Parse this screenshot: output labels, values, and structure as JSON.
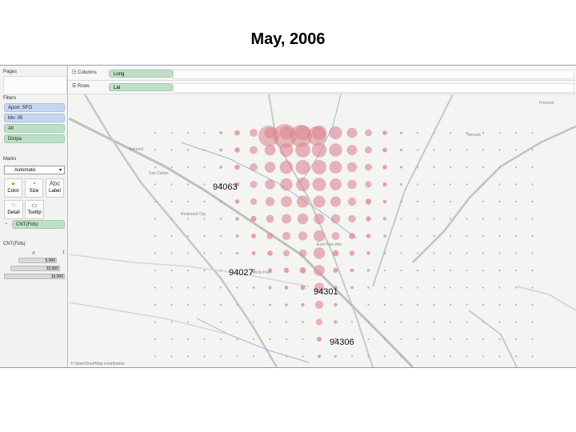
{
  "title": "May, 2006",
  "left_panel": {
    "pages_header": "Pages",
    "filters_header": "Filters",
    "filters": [
      {
        "label": "Aport: SFO",
        "color": "blue"
      },
      {
        "label": "Mo: 05",
        "color": "blue"
      },
      {
        "label": "Alt",
        "color": "green"
      },
      {
        "label": "Distpa",
        "color": "green"
      }
    ],
    "marks_header": "Marks",
    "mark_type": "Automatic",
    "mark_buttons": [
      {
        "label": "Color",
        "icon": "color-palette-icon"
      },
      {
        "label": "Size",
        "icon": "size-icon"
      },
      {
        "label": "Label",
        "icon": "label-icon"
      },
      {
        "label": "Detail",
        "icon": "detail-icon"
      },
      {
        "label": "Tooltip",
        "icon": "tooltip-icon"
      }
    ],
    "size_pill": "CNT(Fids)",
    "legend_header": "CNT(Fids)",
    "legend_items": [
      "1",
      "5,000",
      "10,000",
      "15,000"
    ]
  },
  "shelves": {
    "columns_label": "Columns",
    "columns_value": "Long",
    "rows_label": "Rows",
    "rows_value": "Lat"
  },
  "map": {
    "bubble_color": "#d98590",
    "zip_labels": [
      "94063",
      "94027",
      "94301",
      "94306"
    ],
    "place_labels": [
      "Belmont",
      "San Carlos",
      "Redwood City",
      "East Palo Alto",
      "Menlo Park",
      "Newark",
      "Fremont"
    ],
    "attribution": "© OpenStreetMap contributors"
  }
}
